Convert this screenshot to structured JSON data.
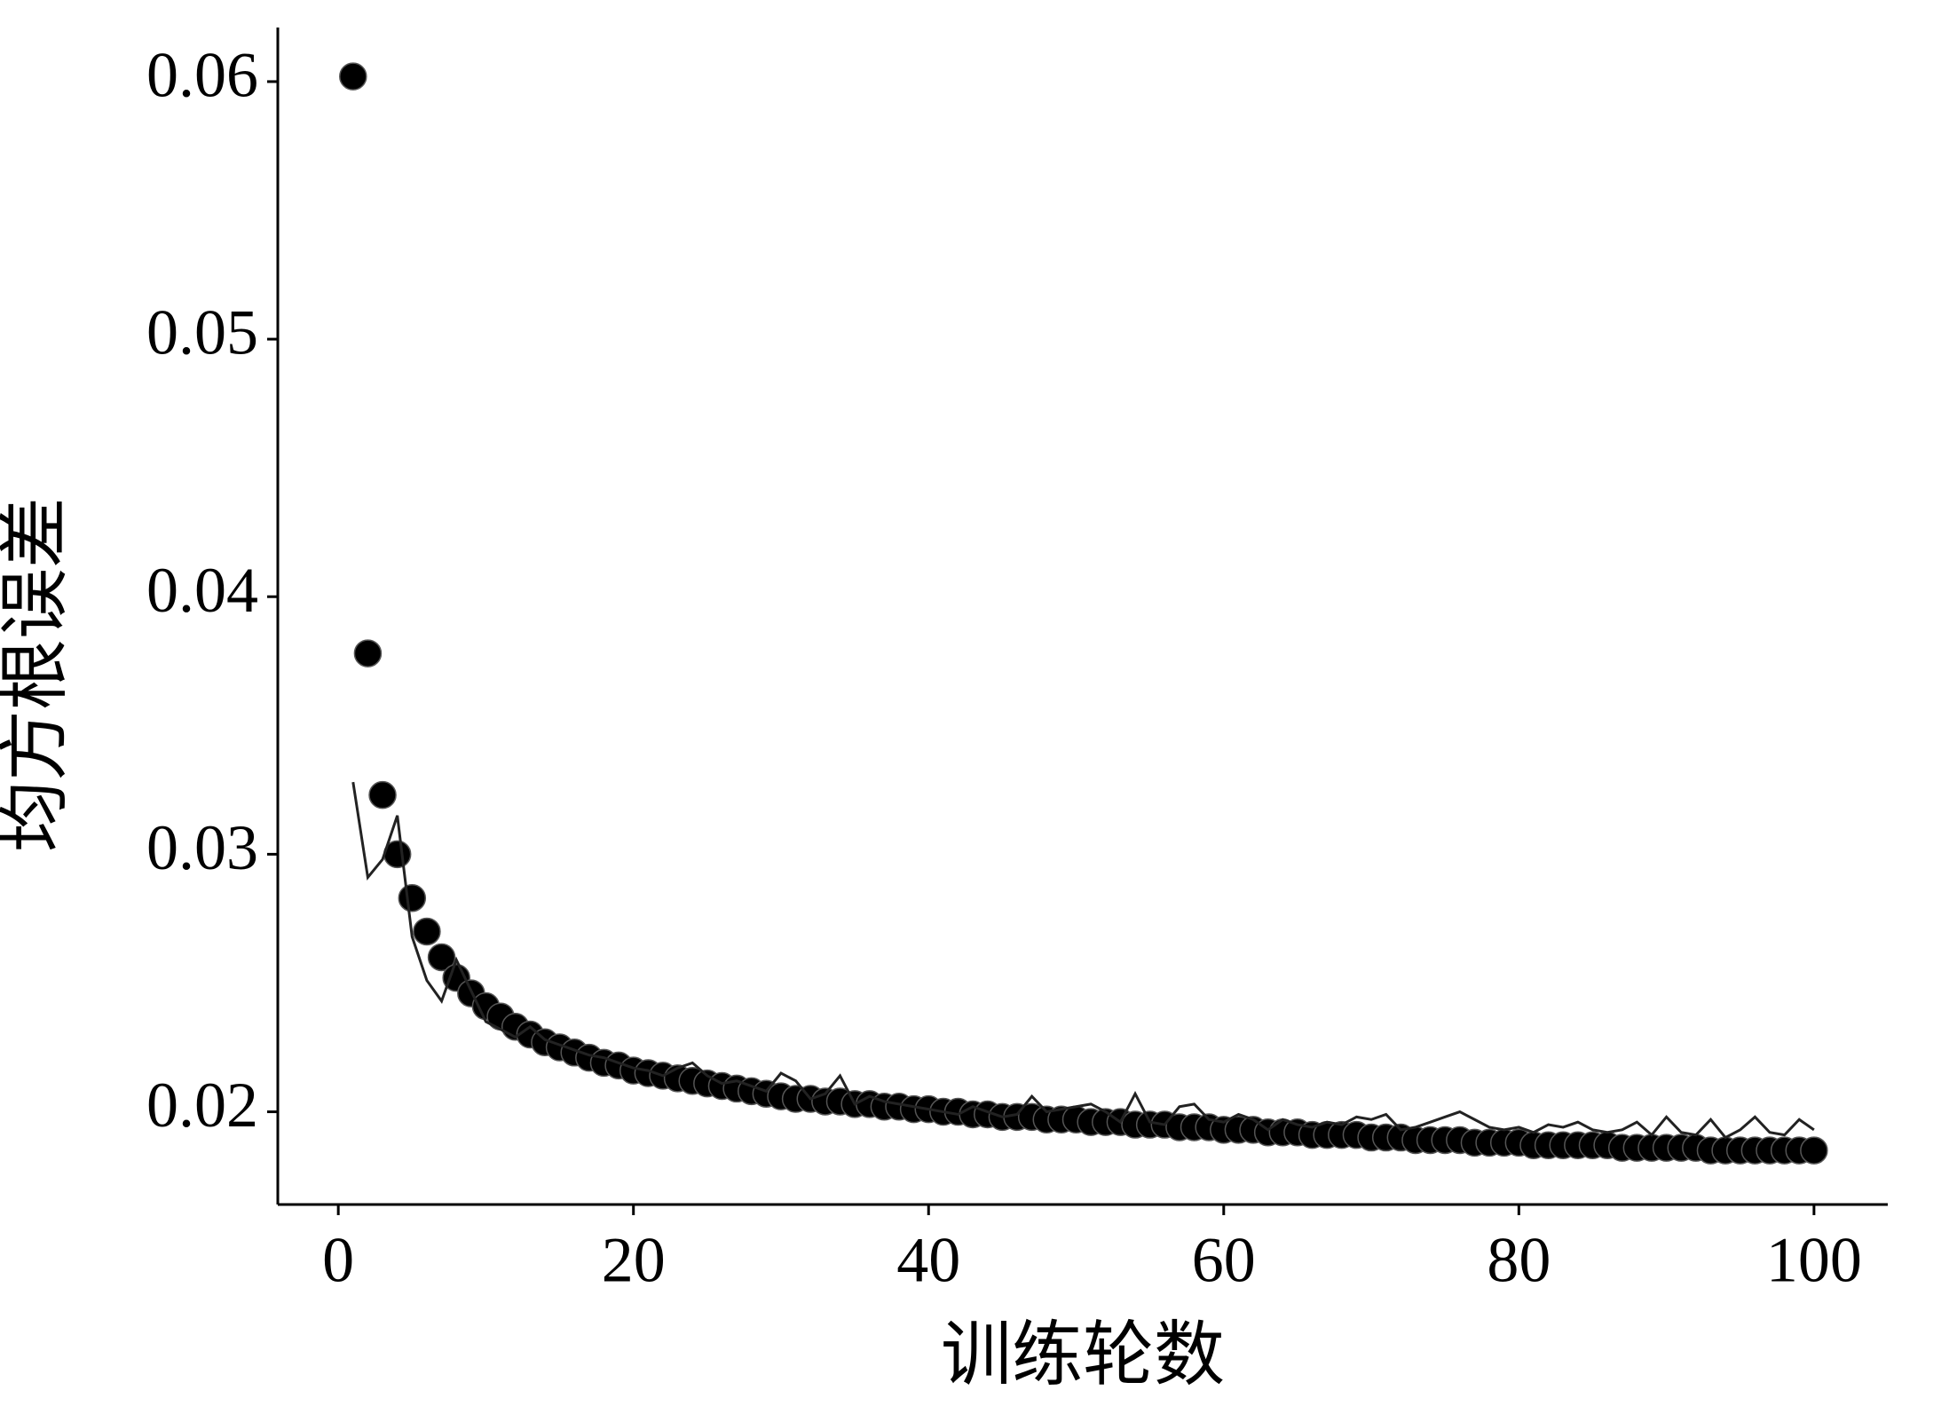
{
  "chart_data": {
    "type": "scatter",
    "x_label": "训练轮数",
    "y_label": "均方根误差",
    "x": [
      1,
      2,
      3,
      4,
      5,
      6,
      7,
      8,
      9,
      10,
      11,
      12,
      13,
      14,
      15,
      16,
      17,
      18,
      19,
      20,
      21,
      22,
      23,
      24,
      25,
      26,
      27,
      28,
      29,
      30,
      31,
      32,
      33,
      34,
      35,
      36,
      37,
      38,
      39,
      40,
      41,
      42,
      43,
      44,
      45,
      46,
      47,
      48,
      49,
      50,
      51,
      52,
      53,
      54,
      55,
      56,
      57,
      58,
      59,
      60,
      61,
      62,
      63,
      64,
      65,
      66,
      67,
      68,
      69,
      70,
      71,
      72,
      73,
      74,
      75,
      76,
      77,
      78,
      79,
      80,
      81,
      82,
      83,
      84,
      85,
      86,
      87,
      88,
      89,
      90,
      91,
      92,
      93,
      94,
      95,
      96,
      97,
      98,
      99,
      100
    ],
    "series": [
      {
        "type": "scatter",
        "color": "#000000",
        "values": [
          0.0602,
          0.0378,
          0.0323,
          0.03,
          0.0283,
          0.027,
          0.026,
          0.0252,
          0.0246,
          0.0241,
          0.0237,
          0.0233,
          0.023,
          0.0227,
          0.0225,
          0.0223,
          0.0221,
          0.0219,
          0.0218,
          0.0216,
          0.0215,
          0.0214,
          0.0213,
          0.0212,
          0.0211,
          0.021,
          0.0209,
          0.0208,
          0.0207,
          0.0206,
          0.0205,
          0.0205,
          0.0204,
          0.0204,
          0.0203,
          0.0203,
          0.0202,
          0.0202,
          0.0201,
          0.0201,
          0.02,
          0.02,
          0.0199,
          0.0199,
          0.0198,
          0.0198,
          0.0198,
          0.0197,
          0.0197,
          0.0197,
          0.0196,
          0.0196,
          0.0196,
          0.0195,
          0.0195,
          0.0195,
          0.0194,
          0.0194,
          0.0194,
          0.0193,
          0.0193,
          0.0193,
          0.0192,
          0.0192,
          0.0192,
          0.0191,
          0.0191,
          0.0191,
          0.0191,
          0.019,
          0.019,
          0.019,
          0.0189,
          0.0189,
          0.0189,
          0.0189,
          0.0188,
          0.0188,
          0.0188,
          0.0188,
          0.0187,
          0.0187,
          0.0187,
          0.0187,
          0.0187,
          0.0187,
          0.0186,
          0.0186,
          0.0186,
          0.0186,
          0.0186,
          0.0186,
          0.0185,
          0.0185,
          0.0185,
          0.0185,
          0.0185,
          0.0185,
          0.0185,
          0.0185
        ]
      },
      {
        "type": "line",
        "color": "#222222",
        "values": [
          0.0328,
          0.0291,
          0.0298,
          0.0315,
          0.0268,
          0.0251,
          0.0243,
          0.0259,
          0.0247,
          0.0235,
          0.0232,
          0.0229,
          0.0233,
          0.0228,
          0.0226,
          0.0224,
          0.0222,
          0.0221,
          0.0219,
          0.0217,
          0.0216,
          0.0214,
          0.0217,
          0.0219,
          0.0214,
          0.0211,
          0.0212,
          0.021,
          0.0208,
          0.0215,
          0.0212,
          0.0205,
          0.0207,
          0.0214,
          0.0203,
          0.0206,
          0.0204,
          0.0203,
          0.0202,
          0.0201,
          0.02,
          0.0199,
          0.0202,
          0.02,
          0.0198,
          0.0199,
          0.0206,
          0.02,
          0.0201,
          0.0202,
          0.0203,
          0.02,
          0.0196,
          0.0207,
          0.0196,
          0.0195,
          0.0202,
          0.0203,
          0.0197,
          0.0196,
          0.0199,
          0.0197,
          0.0193,
          0.0197,
          0.0195,
          0.0194,
          0.0196,
          0.0195,
          0.0198,
          0.0197,
          0.0199,
          0.0193,
          0.0194,
          0.0196,
          0.0198,
          0.02,
          0.0197,
          0.0194,
          0.0193,
          0.0194,
          0.0192,
          0.0195,
          0.0194,
          0.0196,
          0.0193,
          0.0192,
          0.0193,
          0.0196,
          0.0191,
          0.0198,
          0.0192,
          0.0191,
          0.0197,
          0.019,
          0.0193,
          0.0198,
          0.0192,
          0.0191,
          0.0197,
          0.0193
        ]
      }
    ],
    "xlim": [
      -4.1,
      105
    ],
    "ylim": [
      0.0164,
      0.0621
    ],
    "xticks": [
      0,
      20,
      40,
      60,
      80,
      100
    ],
    "yticks": [
      0.02,
      0.03,
      0.04,
      0.05,
      0.06
    ]
  }
}
